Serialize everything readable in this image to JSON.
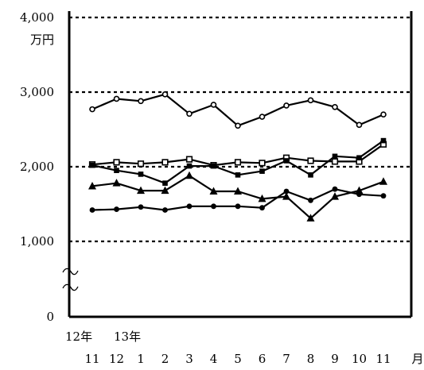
{
  "chart_data": {
    "type": "line",
    "y_unit": "万円",
    "ylim": [
      0,
      4000
    ],
    "y_ticks": [
      {
        "value": 4000,
        "label": "4,000"
      },
      {
        "value": 3000,
        "label": "3,000"
      },
      {
        "value": 2000,
        "label": "2,000"
      },
      {
        "value": 1000,
        "label": "1,000"
      },
      {
        "value": 0,
        "label": "0"
      }
    ],
    "axis_break": true,
    "grid": "dashed horizontal at 1,000 / 2,000 / 3,000 / 4,000",
    "x_unit": "月",
    "categories": [
      "11",
      "12",
      "1",
      "2",
      "3",
      "4",
      "5",
      "6",
      "7",
      "8",
      "9",
      "10",
      "11"
    ],
    "year_labels": [
      {
        "label": "12年",
        "index": 0
      },
      {
        "label": "13年",
        "index": 2
      }
    ],
    "series": [
      {
        "marker": "open-circle",
        "values": [
          2770,
          2910,
          2880,
          2970,
          2710,
          2830,
          2550,
          2670,
          2820,
          2890,
          2800,
          2560,
          2700
        ]
      },
      {
        "marker": "open-square",
        "values": [
          2030,
          2060,
          2040,
          2060,
          2100,
          2020,
          2060,
          2050,
          2120,
          2080,
          2070,
          2070,
          2300
        ]
      },
      {
        "marker": "filled-square",
        "values": [
          2020,
          1950,
          1900,
          1780,
          2010,
          2010,
          1890,
          1940,
          2080,
          1890,
          2140,
          2120,
          2350
        ]
      },
      {
        "marker": "filled-triangle",
        "values": [
          1740,
          1780,
          1680,
          1680,
          1880,
          1670,
          1670,
          1570,
          1600,
          1310,
          1600,
          1680,
          1800
        ]
      },
      {
        "marker": "filled-circle",
        "values": [
          1420,
          1430,
          1460,
          1420,
          1470,
          1470,
          1470,
          1450,
          1670,
          1550,
          1700,
          1630,
          1610
        ]
      }
    ]
  }
}
